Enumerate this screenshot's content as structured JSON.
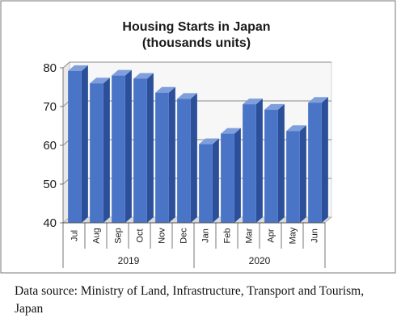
{
  "chart_data": {
    "type": "bar",
    "title": [
      "Housing Starts in Japan",
      "(thousands units)"
    ],
    "categories": [
      "Jul",
      "Aug",
      "Sep",
      "Oct",
      "Nov",
      "Dec",
      "Jan",
      "Feb",
      "Mar",
      "Apr",
      "May",
      "Jun"
    ],
    "values": [
      79.2,
      76.0,
      78.0,
      77.2,
      73.6,
      72.0,
      60.3,
      63.0,
      70.6,
      69.2,
      63.7,
      71.0
    ],
    "year_groups": [
      {
        "label": "2019",
        "start": 0,
        "count": 6
      },
      {
        "label": "2020",
        "start": 6,
        "count": 6
      }
    ],
    "ylim": [
      40,
      80
    ],
    "yticks": [
      40,
      50,
      60,
      70,
      80
    ],
    "grid": true,
    "colors": {
      "bar_front": "#4a74c6",
      "bar_side": "#2c4f9a",
      "bar_top": "#7f9fdc",
      "grid": "#8a8a8a",
      "wall": "#f7f7f7"
    }
  },
  "source_note": "Data source: Ministry of Land, Infrastructure, Transport and Tourism, Japan"
}
